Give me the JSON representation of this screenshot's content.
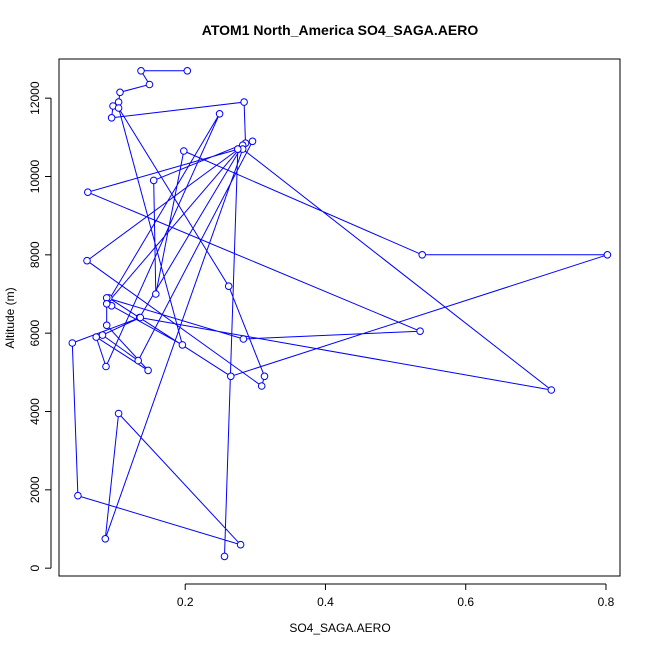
{
  "chart_data": {
    "type": "line",
    "title": "ATOM1 North_America SO4_SAGA.AERO",
    "xlabel": "SO4_SAGA.AERO",
    "ylabel": "Altitude (m)",
    "xlim": [
      0.02,
      0.82
    ],
    "ylim": [
      -200,
      13000
    ],
    "xticks": [
      0.2,
      0.4,
      0.6,
      0.8
    ],
    "xtick_labels": [
      "0.2",
      "0.4",
      "0.6",
      "0.8"
    ],
    "yticks": [
      0,
      2000,
      4000,
      6000,
      8000,
      10000,
      12000
    ],
    "ytick_labels": [
      "0",
      "2000",
      "4000",
      "6000",
      "8000",
      "10000",
      "12000"
    ],
    "grid": false,
    "marker": "open-circle",
    "series": [
      {
        "color": "#0000ff",
        "x": [
          0.203,
          0.137,
          0.149,
          0.107,
          0.105,
          0.097,
          0.095,
          0.284,
          0.286,
          0.155,
          0.158,
          0.198,
          0.538,
          0.802,
          0.265,
          0.091,
          0.095,
          0.196,
          0.105,
          0.262,
          0.313,
          0.309,
          0.06,
          0.276,
          0.061,
          0.535,
          0.283,
          0.088,
          0.088,
          0.147,
          0.073,
          0.087,
          0.249,
          0.088,
          0.282,
          0.135,
          0.722,
          0.282,
          0.086,
          0.105,
          0.279,
          0.047,
          0.039,
          0.136,
          0.082,
          0.133,
          0.296,
          0.275,
          0.256
        ],
        "y": [
          12700,
          12700,
          12350,
          12150,
          11900,
          11800,
          11500,
          11900,
          10850,
          9900,
          7000,
          10650,
          8000,
          8000,
          4900,
          6900,
          6700,
          5700,
          11750,
          7200,
          4900,
          4650,
          7850,
          10700,
          9600,
          6050,
          5850,
          6900,
          6200,
          5050,
          5900,
          5150,
          11600,
          6750,
          10800,
          6400,
          4550,
          10700,
          750,
          3950,
          600,
          1850,
          5750,
          6400,
          5950,
          5300,
          10900,
          10700,
          300
        ]
      }
    ]
  }
}
